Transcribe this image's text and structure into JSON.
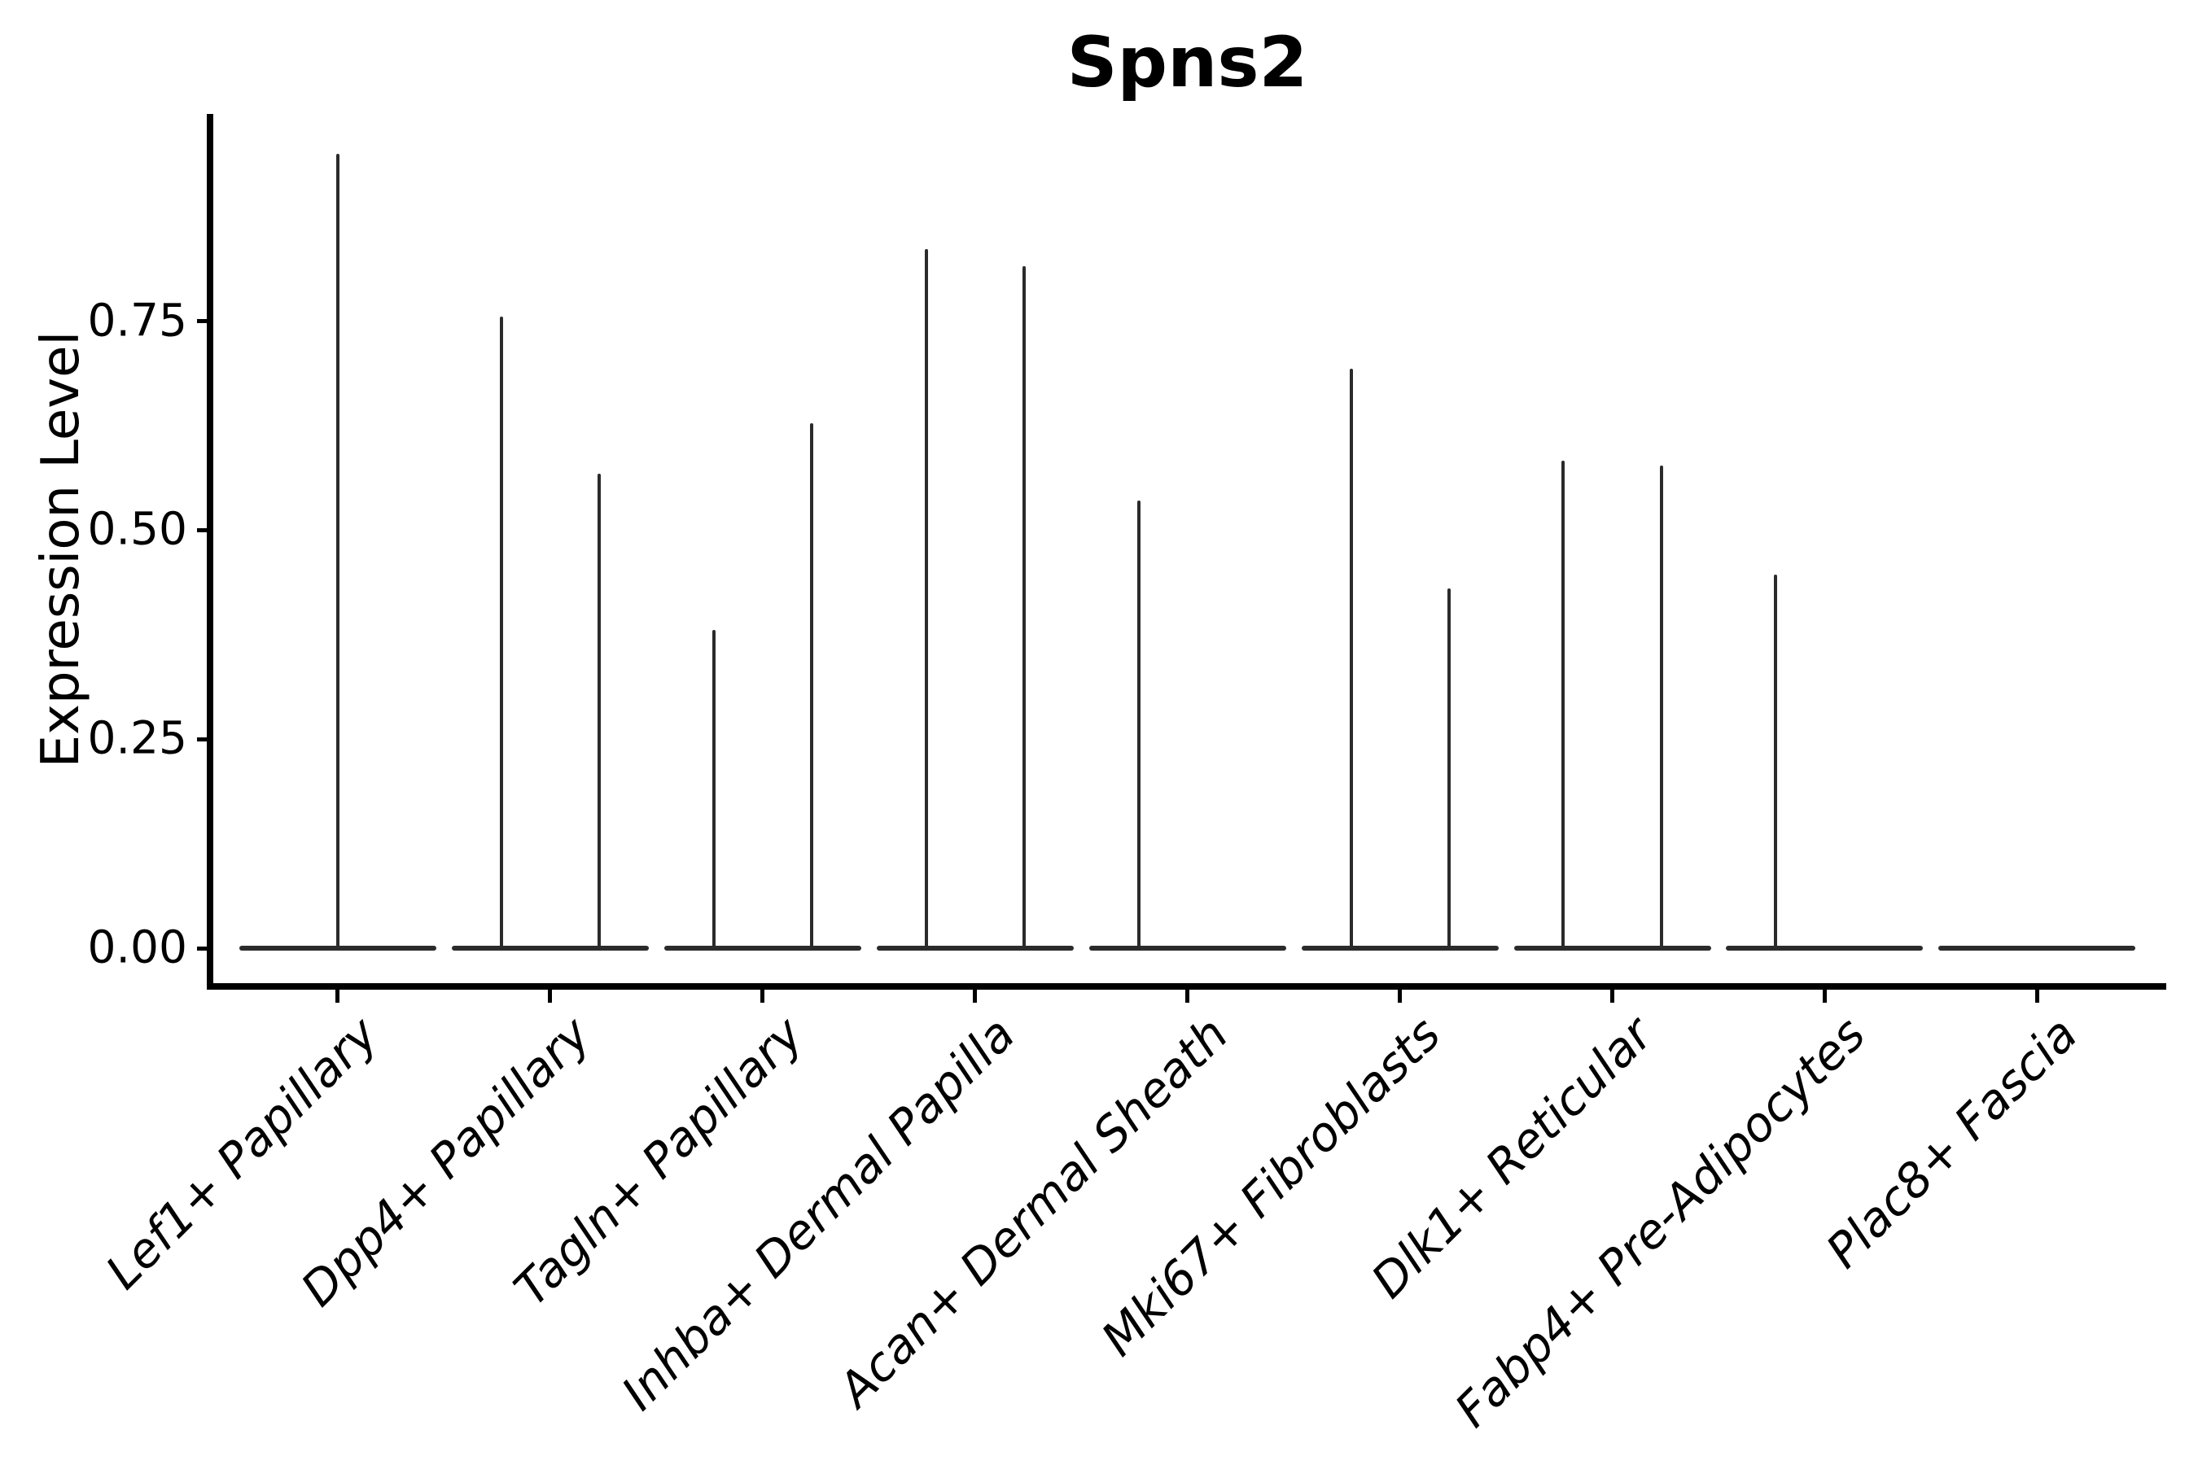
{
  "figure": {
    "title": "Spns2"
  },
  "chart_data": {
    "type": "violin",
    "title": "Spns2",
    "xlabel": "",
    "ylabel": "Expression Level",
    "ylim": [
      0,
      1.0
    ],
    "yticks": [
      0,
      0.25,
      0.5,
      0.75
    ],
    "ytick_labels": [
      "0.00",
      "0.25",
      "0.50",
      "0.75"
    ],
    "grid": false,
    "legend": "none",
    "categories": [
      "Lef1+ Papillary",
      "Dpp4+ Papillary",
      "Tagln+ Papillary",
      "Inhba+ Dermal Papilla",
      "Acan+ Dermal Sheath",
      "Mki67+ Fibroblasts",
      "Dlk1+ Reticular",
      "Fabp4+ Pre-Adipocytes",
      "Plac8+ Fascia"
    ],
    "violins": [
      {
        "category": "Lef1+ Papillary",
        "baseline_value": 0,
        "spikes": [
          {
            "offset_frac": 0.0,
            "max": 0.95
          }
        ]
      },
      {
        "category": "Dpp4+ Papillary",
        "baseline_value": 0,
        "spikes": [
          {
            "offset_frac": -0.23,
            "max": 0.755
          },
          {
            "offset_frac": 0.23,
            "max": 0.568
          }
        ]
      },
      {
        "category": "Tagln+ Papillary",
        "baseline_value": 0,
        "spikes": [
          {
            "offset_frac": -0.23,
            "max": 0.381
          },
          {
            "offset_frac": 0.23,
            "max": 0.628
          }
        ]
      },
      {
        "category": "Inhba+ Dermal Papilla",
        "baseline_value": 0,
        "spikes": [
          {
            "offset_frac": -0.23,
            "max": 0.836
          },
          {
            "offset_frac": 0.23,
            "max": 0.816
          }
        ]
      },
      {
        "category": "Acan+ Dermal Sheath",
        "baseline_value": 0,
        "spikes": [
          {
            "offset_frac": -0.23,
            "max": 0.535
          }
        ]
      },
      {
        "category": "Mki67+ Fibroblasts",
        "baseline_value": 0,
        "spikes": [
          {
            "offset_frac": -0.23,
            "max": 0.693
          },
          {
            "offset_frac": 0.23,
            "max": 0.43
          }
        ]
      },
      {
        "category": "Dlk1+ Reticular",
        "baseline_value": 0,
        "spikes": [
          {
            "offset_frac": -0.23,
            "max": 0.583
          },
          {
            "offset_frac": 0.23,
            "max": 0.577
          }
        ]
      },
      {
        "category": "Fabp4+ Pre-Adipocytes",
        "baseline_value": 0,
        "spikes": [
          {
            "offset_frac": -0.23,
            "max": 0.447
          }
        ]
      },
      {
        "category": "Plac8+ Fascia",
        "baseline_value": 0,
        "spikes": []
      }
    ],
    "colors": {
      "violin_line": "#2b2b2b",
      "axis": "#000000",
      "text": "#000000",
      "background": "#ffffff"
    }
  }
}
